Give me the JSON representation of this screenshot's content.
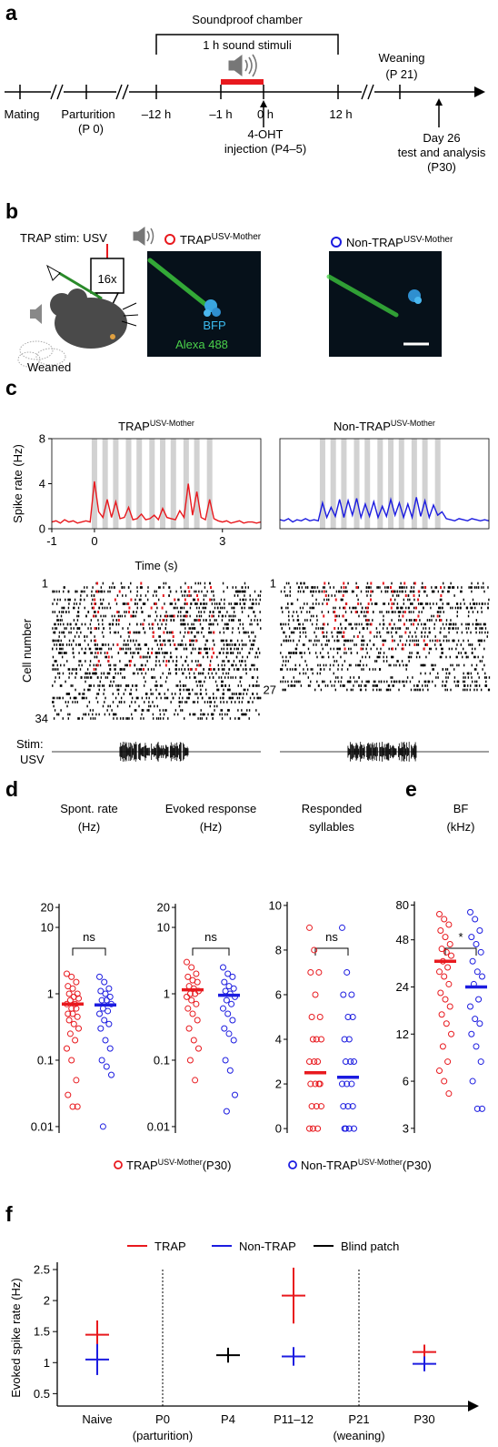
{
  "panel_letters": [
    "a",
    "b",
    "c",
    "d",
    "e",
    "f"
  ],
  "panel_a": {
    "chamber": "Soundproof chamber",
    "stimulus": "1 h sound stimuli",
    "timeline": [
      "Mating",
      "Parturition",
      "–12 h",
      "–1 h",
      "0 h",
      "12 h"
    ],
    "parturition_note": "(P 0)",
    "weaning": [
      "Weaning",
      "(P 21)"
    ],
    "injection": [
      "4-OHT",
      "injection (P4–5)"
    ],
    "test": [
      "Day 26",
      "test and analysis",
      "(P30)"
    ]
  },
  "panel_b": {
    "stim": "TRAP stim: USV",
    "objective": "16x",
    "pups": "Weaned",
    "groups": [
      "TRAP",
      "Non-TRAP"
    ],
    "superscript": "USV-Mother",
    "stains": [
      "BFP",
      "Alexa 488"
    ]
  },
  "chart_data": [
    {
      "type": "line",
      "title": "TRAP",
      "title_sup": "USV-Mother",
      "ylabel": "Spike rate (Hz)",
      "xlabel": "Time (s)",
      "x": [
        -1,
        -0.9,
        -0.8,
        -0.7,
        -0.6,
        -0.5,
        -0.4,
        -0.3,
        -0.2,
        -0.1,
        0,
        0.1,
        0.2,
        0.3,
        0.4,
        0.5,
        0.6,
        0.7,
        0.8,
        0.9,
        1,
        1.1,
        1.2,
        1.3,
        1.4,
        1.5,
        1.6,
        1.7,
        1.8,
        1.9,
        2,
        2.1,
        2.2,
        2.3,
        2.4,
        2.5,
        2.6,
        2.7,
        2.8,
        2.9,
        3,
        3.1,
        3.2,
        3.3,
        3.4,
        3.5,
        3.6,
        3.7,
        3.8,
        3.9
      ],
      "series": [
        {
          "color": "#e8191e",
          "values": [
            0.6,
            0.7,
            0.5,
            0.8,
            0.6,
            0.7,
            0.5,
            0.6,
            0.7,
            0.6,
            4.2,
            1.5,
            1.0,
            2.6,
            1.0,
            2.4,
            0.9,
            1.0,
            1.9,
            0.8,
            0.9,
            1.3,
            0.8,
            0.9,
            1.2,
            0.8,
            1.8,
            1.0,
            0.9,
            0.8,
            1.6,
            1.0,
            4.0,
            1.2,
            3.3,
            1.0,
            0.8,
            2.6,
            0.9,
            0.7,
            0.6,
            0.7,
            0.5,
            0.6,
            0.7,
            0.5,
            0.6,
            0.6,
            0.5,
            0.6
          ]
        }
      ],
      "xlim": [
        -1,
        3.9
      ],
      "ylim": [
        0,
        8
      ],
      "xticks": [
        -1,
        0,
        3
      ],
      "yticks": [
        0,
        4,
        8
      ],
      "stim_times": [
        0,
        0.25,
        0.5,
        0.8,
        1.05,
        1.35,
        1.6,
        1.85,
        2.15,
        2.4,
        2.7
      ],
      "raster_ylabel": "Cell number",
      "raster_yticks": [
        1,
        34
      ],
      "stim_label": [
        "Stim:",
        "USV"
      ]
    },
    {
      "type": "line",
      "title": "Non-TRAP",
      "title_sup": "USV-Mother",
      "x": [
        -1,
        -0.9,
        -0.8,
        -0.7,
        -0.6,
        -0.5,
        -0.4,
        -0.3,
        -0.2,
        -0.1,
        0,
        0.1,
        0.2,
        0.3,
        0.4,
        0.5,
        0.6,
        0.7,
        0.8,
        0.9,
        1,
        1.1,
        1.2,
        1.3,
        1.4,
        1.5,
        1.6,
        1.7,
        1.8,
        1.9,
        2,
        2.1,
        2.2,
        2.3,
        2.4,
        2.5,
        2.6,
        2.7,
        2.8,
        2.9,
        3,
        3.1,
        3.2,
        3.3,
        3.4,
        3.5,
        3.6,
        3.7,
        3.8,
        3.9
      ],
      "series": [
        {
          "color": "#1c1ce0",
          "values": [
            0.8,
            0.7,
            0.9,
            0.6,
            0.8,
            0.7,
            0.9,
            0.7,
            0.8,
            0.7,
            2.3,
            1.0,
            1.9,
            1.1,
            2.6,
            1.0,
            2.5,
            1.2,
            2.7,
            1.0,
            2.2,
            1.1,
            2.4,
            1.0,
            2.0,
            1.1,
            2.6,
            1.2,
            2.3,
            1.0,
            2.2,
            1.0,
            2.8,
            1.1,
            2.5,
            1.0,
            2.1,
            1.2,
            1.5,
            0.9,
            0.8,
            0.7,
            0.9,
            0.8,
            0.7,
            0.9,
            0.8,
            0.7,
            0.8,
            0.7
          ]
        }
      ],
      "xlim": [
        -1,
        3.9
      ],
      "ylim": [
        0,
        8
      ],
      "stim_times": [
        0,
        0.25,
        0.5,
        0.8,
        1.05,
        1.35,
        1.6,
        1.85,
        2.15,
        2.4,
        2.7
      ],
      "raster_yticks": [
        1,
        27
      ]
    },
    {
      "type": "strip",
      "title": "Spont. rate",
      "subtitle": "(Hz)",
      "sig": "ns",
      "log": true,
      "ylim": [
        0.008,
        25
      ],
      "yticks": [
        0.01,
        0.1,
        1,
        10,
        20
      ],
      "series": [
        {
          "name": "TRAP",
          "name_sup": "USV-Mother",
          "name_suffix": "(P30)",
          "color": "#e8191e",
          "mean": 0.7,
          "values": [
            2,
            1.8,
            1.5,
            1.3,
            1.2,
            1,
            1,
            0.9,
            0.85,
            0.8,
            0.7,
            0.7,
            0.6,
            0.6,
            0.5,
            0.5,
            0.45,
            0.4,
            0.35,
            0.3,
            0.25,
            0.2,
            0.15,
            0.1,
            0.05,
            0.03,
            0.02,
            0.02
          ]
        },
        {
          "name": "Non-TRAP",
          "name_sup": "USV-Mother",
          "name_suffix": "(P30)",
          "color": "#1c1ce0",
          "mean": 0.68,
          "values": [
            1.8,
            1.5,
            1.2,
            1.1,
            1,
            0.9,
            0.8,
            0.8,
            0.7,
            0.6,
            0.55,
            0.5,
            0.4,
            0.35,
            0.3,
            0.2,
            0.15,
            0.1,
            0.08,
            0.06,
            0.01
          ]
        }
      ]
    },
    {
      "type": "strip",
      "title": "Evoked response",
      "subtitle": "(Hz)",
      "sig": "ns",
      "log": true,
      "ylim": [
        0.008,
        25
      ],
      "yticks": [
        0.01,
        0.1,
        1,
        10,
        20
      ],
      "series": [
        {
          "color": "#e8191e",
          "mean": 1.15,
          "values": [
            3,
            2.5,
            2,
            1.8,
            1.6,
            1.5,
            1.3,
            1.2,
            1.1,
            1,
            1,
            0.9,
            0.8,
            0.7,
            0.6,
            0.5,
            0.4,
            0.3,
            0.2,
            0.15,
            0.1,
            0.05
          ]
        },
        {
          "color": "#1c1ce0",
          "mean": 0.95,
          "values": [
            2.5,
            2,
            1.8,
            1.5,
            1.3,
            1.2,
            1.1,
            1,
            0.9,
            0.8,
            0.7,
            0.6,
            0.5,
            0.4,
            0.3,
            0.25,
            0.2,
            0.1,
            0.07,
            0.03,
            0.017
          ]
        }
      ]
    },
    {
      "type": "strip",
      "title": "Responded",
      "subtitle": "syllables",
      "sig": "ns",
      "log": false,
      "ylim": [
        -0.2,
        10.2
      ],
      "yticks": [
        0,
        2,
        4,
        6,
        8,
        10
      ],
      "series": [
        {
          "color": "#e8191e",
          "mean": 2.5,
          "values": [
            9,
            8,
            7,
            7,
            6,
            5,
            5,
            4,
            4,
            4,
            3,
            3,
            3,
            2,
            2,
            2,
            2,
            1,
            1,
            1,
            0,
            0,
            0
          ]
        },
        {
          "color": "#1c1ce0",
          "mean": 2.3,
          "values": [
            9,
            7,
            6,
            6,
            5,
            5,
            4,
            4,
            3,
            3,
            3,
            2,
            2,
            2,
            1,
            1,
            1,
            0,
            0,
            0,
            0
          ]
        }
      ]
    },
    {
      "type": "strip",
      "title": "BF",
      "subtitle": "(kHz)",
      "sig": "*",
      "log": true,
      "ylim": [
        2.8,
        85
      ],
      "yticks": [
        3,
        6,
        12,
        24,
        48,
        80
      ],
      "series": [
        {
          "color": "#e8191e",
          "mean": 35,
          "values": [
            70,
            65,
            60,
            55,
            50,
            45,
            42,
            40,
            38,
            35,
            32,
            30,
            28,
            25,
            22,
            20,
            18,
            16,
            14,
            12,
            10,
            8,
            7,
            6,
            5
          ]
        },
        {
          "color": "#1c1ce0",
          "mean": 24,
          "values": [
            72,
            65,
            55,
            50,
            45,
            40,
            35,
            30,
            28,
            25,
            20,
            18,
            15,
            14,
            12,
            10,
            8,
            6,
            4,
            4
          ]
        }
      ]
    },
    {
      "type": "errorbar",
      "ylabel": "Evoked spike rate (Hz)",
      "categories": [
        "Naive",
        "P0",
        "P4",
        "P11–12",
        "P21",
        "P30"
      ],
      "category_notes": [
        null,
        "(parturition)",
        null,
        null,
        "(weaning)",
        null
      ],
      "ylim": [
        0.3,
        2.5
      ],
      "yticks": [
        0.5,
        1,
        1.5,
        2,
        2.5
      ],
      "series": [
        {
          "name": "TRAP",
          "color": "#e8191e",
          "values": [
            1.45,
            null,
            null,
            2.08,
            null,
            1.17
          ],
          "errors": [
            0.23,
            null,
            null,
            0.45,
            null,
            0.12
          ]
        },
        {
          "name": "Non-TRAP",
          "color": "#1c1ce0",
          "values": [
            1.05,
            null,
            null,
            1.1,
            null,
            0.98
          ],
          "errors": [
            0.25,
            null,
            null,
            0.15,
            null,
            0.12
          ]
        },
        {
          "name": "Blind patch",
          "color": "#000000",
          "values": [
            null,
            null,
            1.12,
            null,
            null,
            null
          ],
          "errors": [
            null,
            null,
            0.12,
            null,
            null,
            null
          ]
        }
      ]
    }
  ]
}
